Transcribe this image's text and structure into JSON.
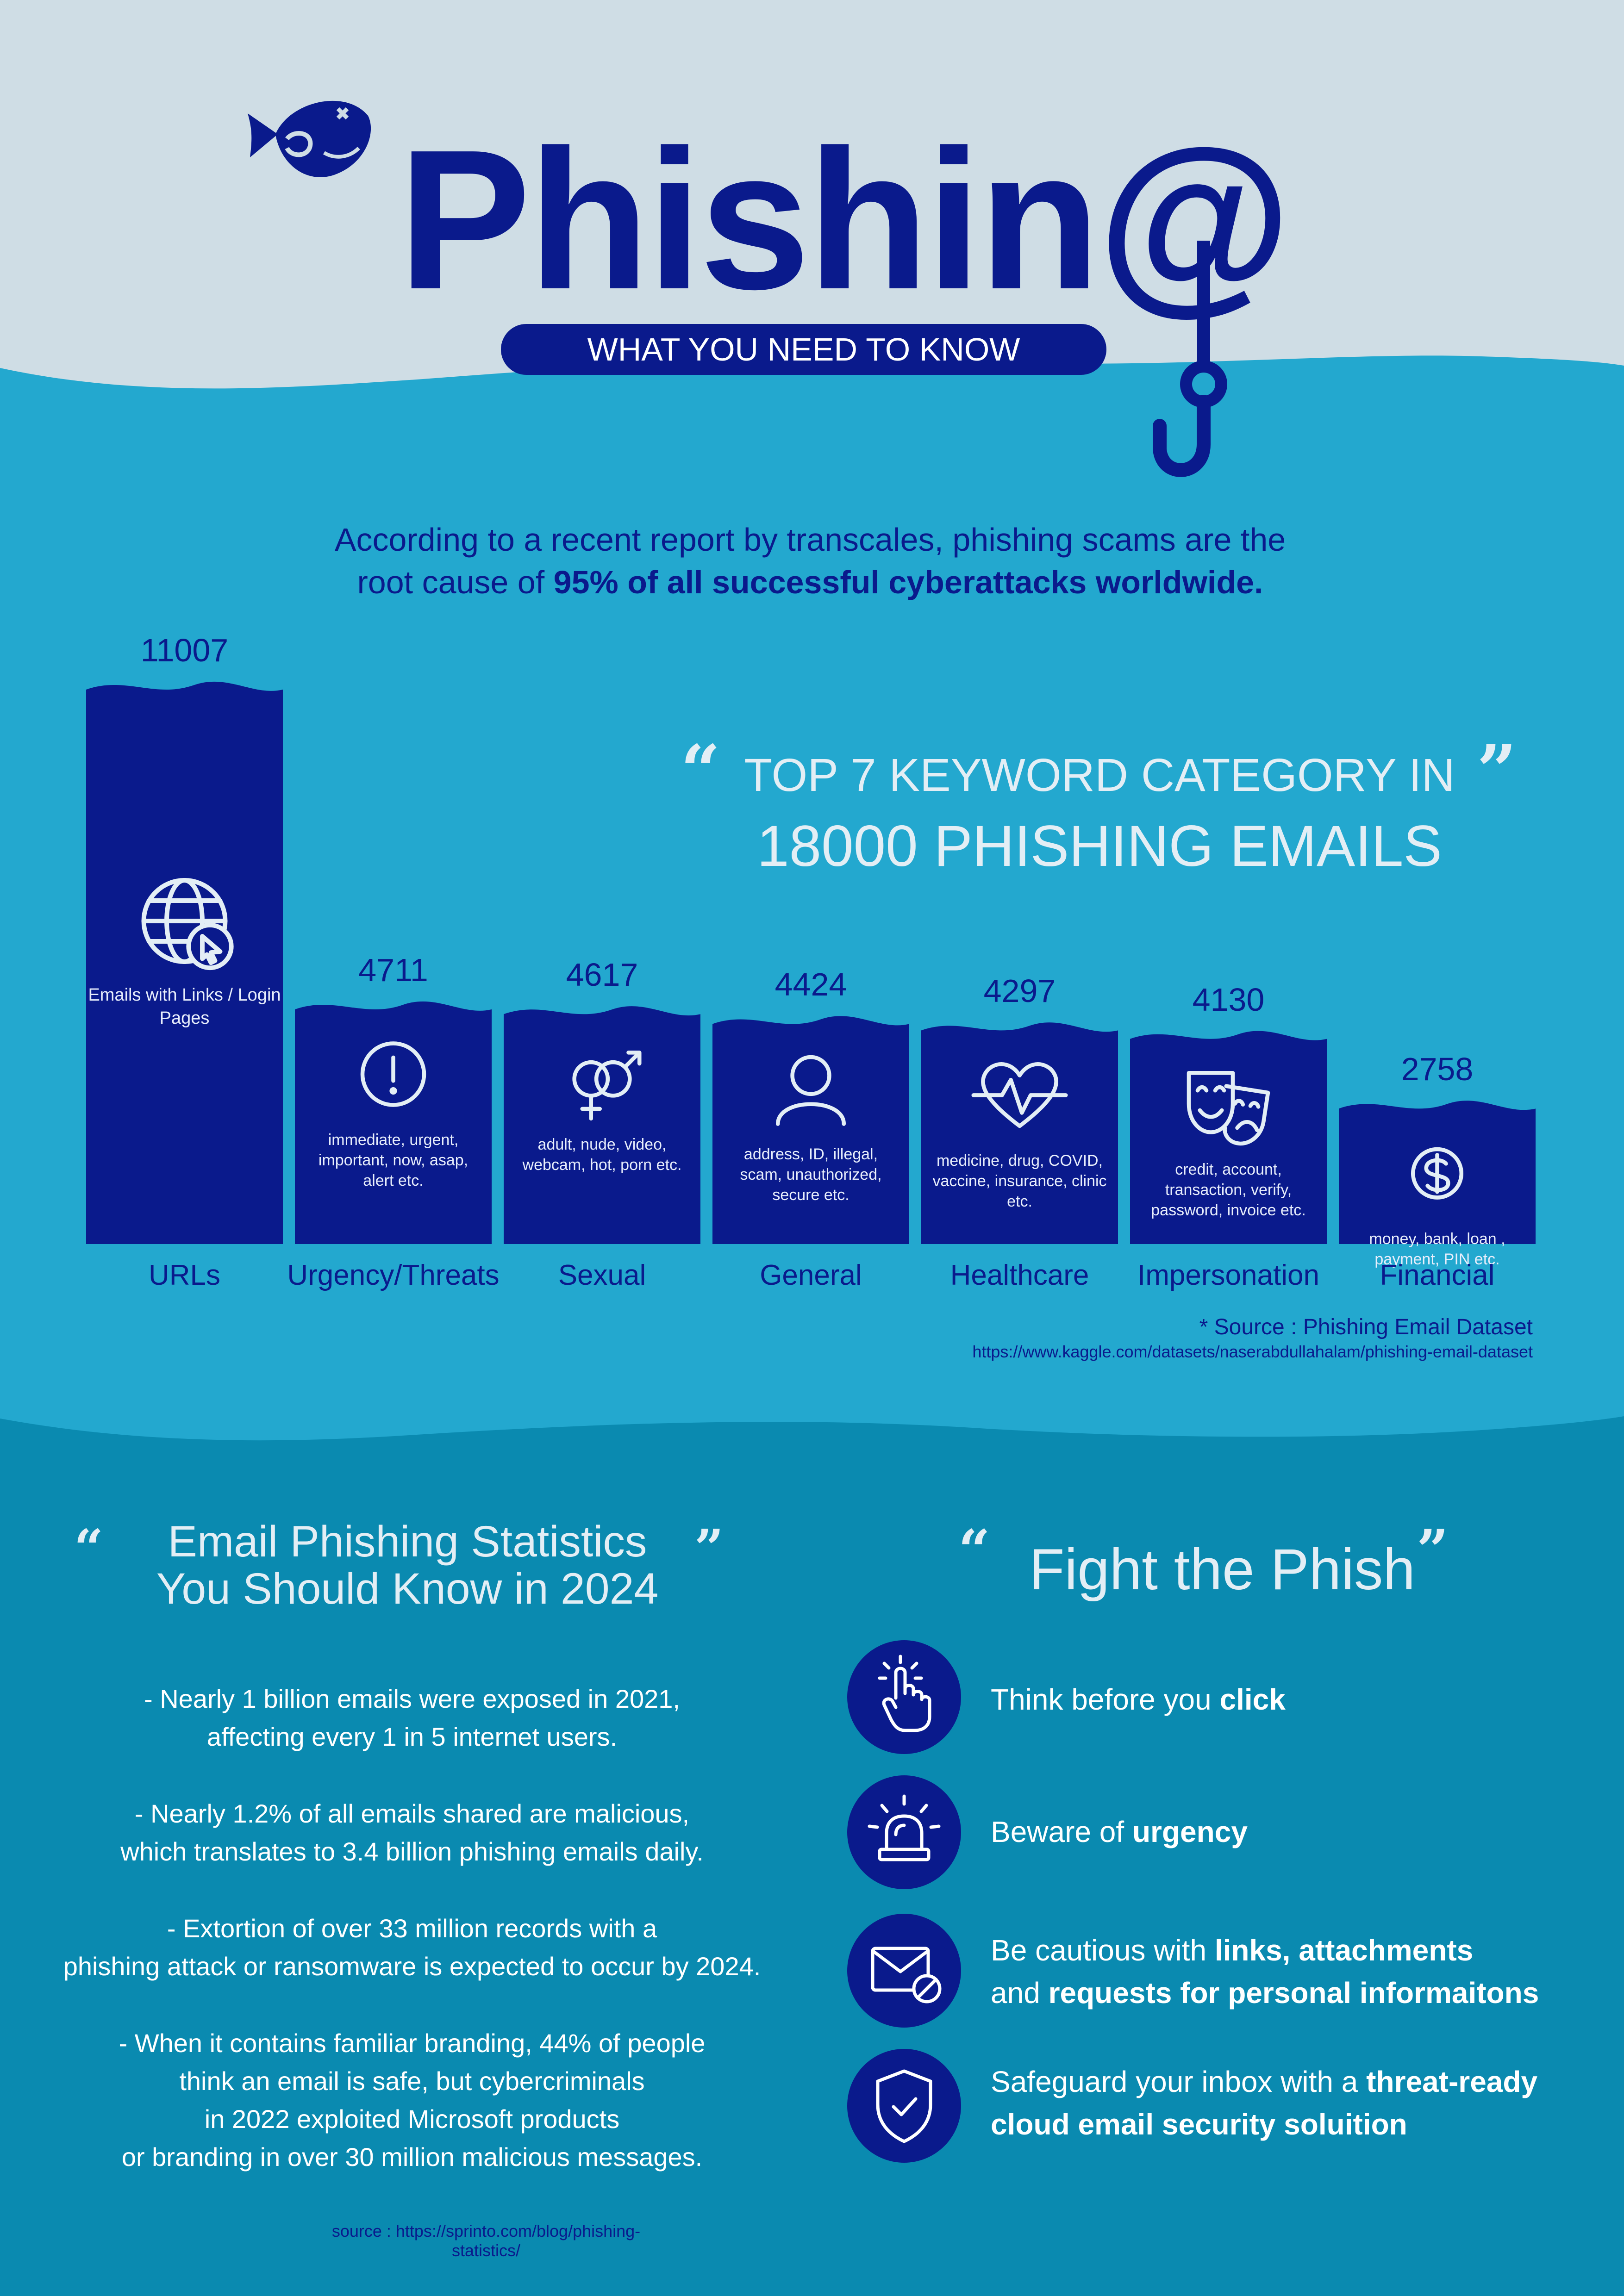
{
  "header": {
    "title": "Phishin@",
    "subtitle": "WHAT YOU NEED TO KNOW"
  },
  "intro": {
    "line1": "According to a recent report by transcales, phishing scams are the",
    "line2_prefix": "root cause of ",
    "line2_bold": "95% of all successful cyberattacks worldwide."
  },
  "chart_heading": {
    "line1": "TOP 7 KEYWORD CATEGORY IN",
    "line2": "18000 PHISHING EMAILS",
    "quote_open": "“",
    "quote_close": "”"
  },
  "chart_data": {
    "type": "bar",
    "title": "TOP 7 KEYWORD CATEGORY IN 18000 PHISHING EMAILS",
    "categories": [
      "URLs",
      "Urgency/Threats",
      "Sexual",
      "General",
      "Healthcare",
      "Impersonation",
      "Financial"
    ],
    "values": [
      11007,
      4711,
      4617,
      4424,
      4297,
      4130,
      2758
    ],
    "value_labels": [
      "11007",
      "4711",
      "4617",
      "4424",
      "4297",
      "4130",
      "2758"
    ],
    "descriptions": [
      "Emails with Links / Login Pages",
      "immediate, urgent, important, now, asap, alert etc.",
      "adult, nude, video, webcam, hot, porn etc.",
      "address, ID, illegal, scam, unauthorized, secure etc.",
      "medicine, drug, COVID, vaccine, insurance, clinic etc.",
      "credit, account, transaction, verify, password, invoice etc.",
      "money, bank, loan , payment, PIN etc."
    ],
    "icons": [
      "globe-cursor-icon",
      "exclamation-icon",
      "gender-icon",
      "person-icon",
      "heartbeat-icon",
      "theater-masks-icon",
      "dollar-coin-icon"
    ],
    "xlabel": "",
    "ylabel": "",
    "ylim": [
      0,
      11007
    ],
    "grid": false
  },
  "chart_source": {
    "label": "* Source : Phishing Email Dataset",
    "url": "https://www.kaggle.com/datasets/naserabdullahalam/phishing-email-dataset"
  },
  "stats": {
    "heading_line1": "Email Phishing Statistics",
    "heading_line2": "You Should Know in 2024",
    "quote_open": "“",
    "quote_close": "”",
    "items": [
      [
        "- Nearly 1 billion emails were exposed in 2021,",
        "affecting every 1 in 5 internet users."
      ],
      [
        "- Nearly 1.2% of all emails shared are malicious,",
        "which translates to 3.4 billion phishing emails daily."
      ],
      [
        "- Extortion of over 33 million records with a",
        "phishing attack or ransomware is expected to occur by 2024."
      ],
      [
        "- When it contains familiar branding, 44% of people",
        "think an email is safe, but cybercriminals",
        "in 2022 exploited Microsoft products",
        "or branding in over 30 million malicious messages."
      ]
    ],
    "source": "source : https://sprinto.com/blog/phishing-statistics/"
  },
  "fight": {
    "heading": "Fight the Phish",
    "quote_open": "“",
    "quote_close": "”",
    "tips": [
      {
        "icon": "click-hand-icon",
        "plain1": "Think before you ",
        "bold1": "click",
        "plain2": "",
        "bold2": ""
      },
      {
        "icon": "alarm-siren-icon",
        "plain1": "Beware of ",
        "bold1": "urgency",
        "plain2": "",
        "bold2": ""
      },
      {
        "icon": "blocked-mail-icon",
        "plain1": "Be cautious with ",
        "bold1": "links, attachments",
        "plain2": "and ",
        "bold2": "requests for personal informaitons"
      },
      {
        "icon": "shield-check-icon",
        "plain1": "Safeguard your inbox with a ",
        "bold1": "threat-ready",
        "plain2": "",
        "bold2": "cloud email security soluition"
      }
    ]
  },
  "colors": {
    "navy": "#0a1a8c",
    "sky_top": "#cfdde5",
    "water_mid": "#23a8cf",
    "water_deep": "#0a8ab0",
    "text_light": "#e3eef5"
  }
}
